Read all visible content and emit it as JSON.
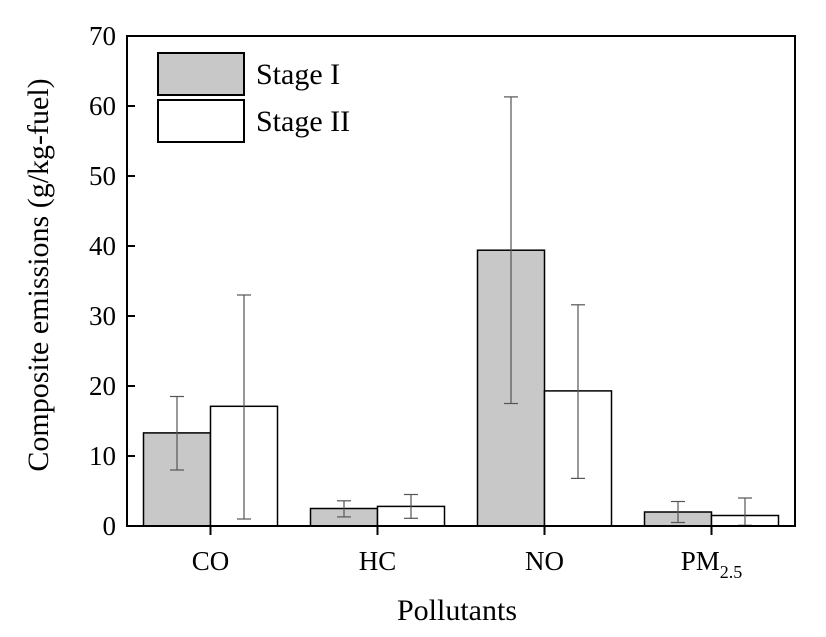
{
  "chart_data": {
    "type": "bar",
    "title": "",
    "xlabel": "Pollutants",
    "ylabel": "Composite emissions (g/kg-fuel)",
    "ylim": [
      0,
      70
    ],
    "yticks": [
      0,
      10,
      20,
      30,
      40,
      50,
      60,
      70
    ],
    "categories": [
      {
        "main": "CO",
        "sub": ""
      },
      {
        "main": "HC",
        "sub": ""
      },
      {
        "main": "NO",
        "sub": ""
      },
      {
        "main": "PM",
        "sub": "2.5"
      }
    ],
    "series": [
      {
        "name": "Stage I",
        "color": "#c8c8c8",
        "values": [
          13.3,
          2.5,
          39.4,
          2.0
        ],
        "error_low": [
          8.0,
          1.3,
          17.5,
          0.5
        ],
        "error_high": [
          18.5,
          3.6,
          61.3,
          3.5
        ]
      },
      {
        "name": "Stage II",
        "color": "#ffffff",
        "values": [
          17.1,
          2.8,
          19.3,
          1.5
        ],
        "error_low": [
          1.0,
          1.1,
          6.8,
          0.1
        ],
        "error_high": [
          33.0,
          4.5,
          31.6,
          4.0
        ]
      }
    ],
    "legend_position": "top-left",
    "grid": false
  }
}
